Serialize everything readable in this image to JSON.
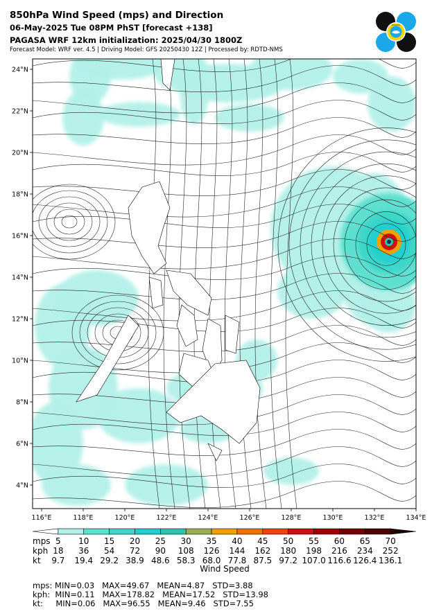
{
  "header": {
    "title": "850hPa Wind Speed (mps) and Direction",
    "subtitle": "06-May-2025 Tue 08PM PhST [forecast +138]",
    "init": "PAGASA WRF 12km initialization: 2025/04/30 1800Z",
    "credits": "Forecast Model: WRF ver. 4.5 | Driving Model: GFS 20250430 12Z | Processed by: RDTD-NMS"
  },
  "map": {
    "lat_labels": [
      "24°N",
      "22°N",
      "20°N",
      "18°N",
      "16°N",
      "14°N",
      "12°N",
      "10°N",
      "8°N",
      "6°N",
      "4°N"
    ],
    "lon_labels": [
      "116°E",
      "118°E",
      "120°E",
      "122°E",
      "124°E",
      "126°E",
      "128°E",
      "130°E",
      "132°E",
      "134°E"
    ],
    "lon_range": [
      116,
      134
    ],
    "lat_range": [
      3,
      24.5
    ],
    "typhoon_center": {
      "lon": 132.7,
      "lat": 15.7
    }
  },
  "colorbar": {
    "colors": [
      "#ffffff",
      "#b2f0e8",
      "#5edfd0",
      "#3dd6c8",
      "#20cfd0",
      "#2ac4b0",
      "#98b050",
      "#f0a000",
      "#f07000",
      "#f04010",
      "#d01010",
      "#a00000",
      "#700000",
      "#500000",
      "#200000"
    ],
    "rows": [
      {
        "label": "mps",
        "values": [
          "5",
          "10",
          "15",
          "20",
          "25",
          "30",
          "35",
          "40",
          "45",
          "50",
          "55",
          "60",
          "65",
          "70"
        ]
      },
      {
        "label": "kph",
        "values": [
          "18",
          "36",
          "54",
          "72",
          "90",
          "108",
          "126",
          "144",
          "162",
          "180",
          "198",
          "216",
          "234",
          "252"
        ]
      },
      {
        "label": "kt",
        "values": [
          "9.7",
          "19.4",
          "29.2",
          "38.9",
          "48.6",
          "58.3",
          "68.0",
          "77.8",
          "87.5",
          "97.2",
          "107.0",
          "116.6",
          "126.4",
          "136.1"
        ]
      }
    ],
    "axis_label": "Wind Speed"
  },
  "stats": {
    "mps": "mps: MIN=0.03   MAX=49.67   MEAN=4.87   STD=3.88",
    "kph": "kph:  MIN=0.11   MAX=178.82   MEAN=17.52   STD=13.98",
    "kt": "kt:     MIN=0.06   MAX=96.55   MEAN=9.46   STD=7.55"
  },
  "logo": {
    "ring_text": "PAGASA",
    "colors": {
      "dark": "#111111",
      "blue": "#1ba8e8",
      "yellow": "#f5d400"
    }
  }
}
